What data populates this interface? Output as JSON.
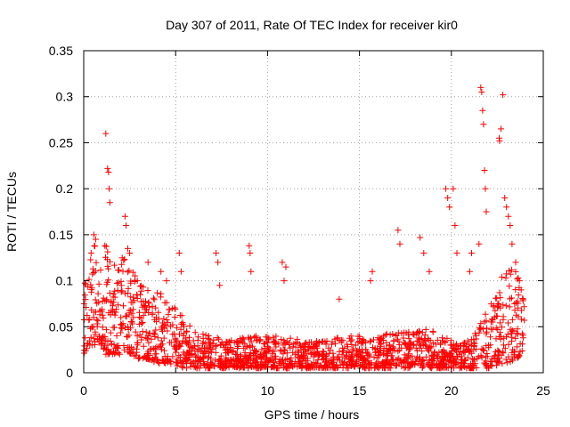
{
  "chart_data": {
    "type": "scatter",
    "title": "Day 307 of 2011, Rate Of TEC Index for receiver kir0",
    "xlabel": "GPS time / hours",
    "ylabel": "ROTI / TECUs",
    "xlim": [
      0,
      25
    ],
    "ylim": [
      0,
      0.35
    ],
    "x_ticks": [
      0,
      5,
      10,
      15,
      20,
      25
    ],
    "y_ticks": [
      0,
      0.05,
      0.1,
      0.15,
      0.2,
      0.25,
      0.3,
      0.35
    ],
    "x_tick_labels": [
      "0",
      "5",
      "10",
      "15",
      "20",
      "25"
    ],
    "y_tick_labels": [
      "0",
      "0.05",
      "0.1",
      "0.15",
      "0.2",
      "0.25",
      "0.3",
      "0.35"
    ],
    "grid": true,
    "legend": "none",
    "marker": "+",
    "series_color": "#ff0000",
    "envelope": {
      "x": [
        0,
        0.3,
        0.6,
        1.0,
        1.2,
        1.5,
        2.0,
        2.5,
        3.0,
        3.5,
        4.0,
        4.5,
        5.0,
        5.5,
        6.0,
        7.0,
        8.0,
        9.0,
        10.0,
        11.0,
        12.0,
        13.0,
        14.0,
        15.0,
        16.0,
        17.0,
        18.0,
        18.5,
        19.0,
        19.5,
        20.0,
        20.5,
        21.0,
        21.5,
        22.0,
        22.5,
        23.0,
        23.5,
        24.0
      ],
      "low": [
        0.02,
        0.03,
        0.03,
        0.03,
        0.02,
        0.02,
        0.02,
        0.02,
        0.015,
        0.015,
        0.01,
        0.01,
        0.008,
        0.005,
        0.005,
        0.005,
        0.005,
        0.005,
        0.005,
        0.005,
        0.005,
        0.005,
        0.005,
        0.005,
        0.005,
        0.005,
        0.005,
        0.005,
        0.005,
        0.005,
        0.005,
        0.005,
        0.005,
        0.005,
        0.005,
        0.008,
        0.01,
        0.015,
        0.02
      ],
      "high": [
        0.1,
        0.13,
        0.14,
        0.12,
        0.15,
        0.12,
        0.13,
        0.12,
        0.1,
        0.09,
        0.09,
        0.08,
        0.07,
        0.06,
        0.045,
        0.04,
        0.035,
        0.04,
        0.04,
        0.04,
        0.035,
        0.035,
        0.04,
        0.04,
        0.04,
        0.045,
        0.045,
        0.05,
        0.045,
        0.04,
        0.035,
        0.035,
        0.035,
        0.05,
        0.07,
        0.09,
        0.12,
        0.12,
        0.11
      ]
    },
    "outlier_points": [
      [
        1.2,
        0.26
      ],
      [
        1.3,
        0.222
      ],
      [
        1.35,
        0.218
      ],
      [
        1.38,
        0.2
      ],
      [
        1.42,
        0.185
      ],
      [
        2.25,
        0.17
      ],
      [
        2.3,
        0.16
      ],
      [
        2.4,
        0.135
      ],
      [
        2.5,
        0.13
      ],
      [
        0.55,
        0.15
      ],
      [
        0.65,
        0.145
      ],
      [
        0.4,
        0.13
      ],
      [
        3.5,
        0.12
      ],
      [
        4.2,
        0.11
      ],
      [
        4.5,
        0.1
      ],
      [
        5.2,
        0.13
      ],
      [
        5.3,
        0.11
      ],
      [
        7.2,
        0.13
      ],
      [
        7.3,
        0.12
      ],
      [
        7.4,
        0.095
      ],
      [
        9.0,
        0.138
      ],
      [
        9.05,
        0.13
      ],
      [
        9.1,
        0.11
      ],
      [
        10.8,
        0.12
      ],
      [
        10.9,
        0.1
      ],
      [
        11.0,
        0.115
      ],
      [
        13.9,
        0.08
      ],
      [
        15.6,
        0.1
      ],
      [
        15.7,
        0.11
      ],
      [
        17.1,
        0.155
      ],
      [
        17.2,
        0.14
      ],
      [
        18.3,
        0.147
      ],
      [
        18.5,
        0.13
      ],
      [
        18.8,
        0.11
      ],
      [
        19.7,
        0.2
      ],
      [
        19.8,
        0.19
      ],
      [
        19.9,
        0.18
      ],
      [
        20.1,
        0.2
      ],
      [
        20.2,
        0.16
      ],
      [
        20.3,
        0.13
      ],
      [
        21.0,
        0.11
      ],
      [
        21.1,
        0.13
      ],
      [
        21.5,
        0.14
      ],
      [
        21.6,
        0.31
      ],
      [
        21.65,
        0.305
      ],
      [
        21.7,
        0.285
      ],
      [
        21.75,
        0.27
      ],
      [
        21.8,
        0.22
      ],
      [
        21.85,
        0.2
      ],
      [
        21.9,
        0.175
      ],
      [
        22.6,
        0.255
      ],
      [
        22.62,
        0.252
      ],
      [
        22.7,
        0.265
      ],
      [
        22.8,
        0.302
      ],
      [
        22.9,
        0.19
      ],
      [
        23.0,
        0.18
      ],
      [
        23.1,
        0.17
      ],
      [
        23.2,
        0.16
      ],
      [
        23.3,
        0.14
      ],
      [
        23.5,
        0.12
      ],
      [
        23.7,
        0.1
      ],
      [
        23.8,
        0.09
      ],
      [
        23.9,
        0.08
      ]
    ],
    "density_points": 1800,
    "random_seed": 307
  }
}
